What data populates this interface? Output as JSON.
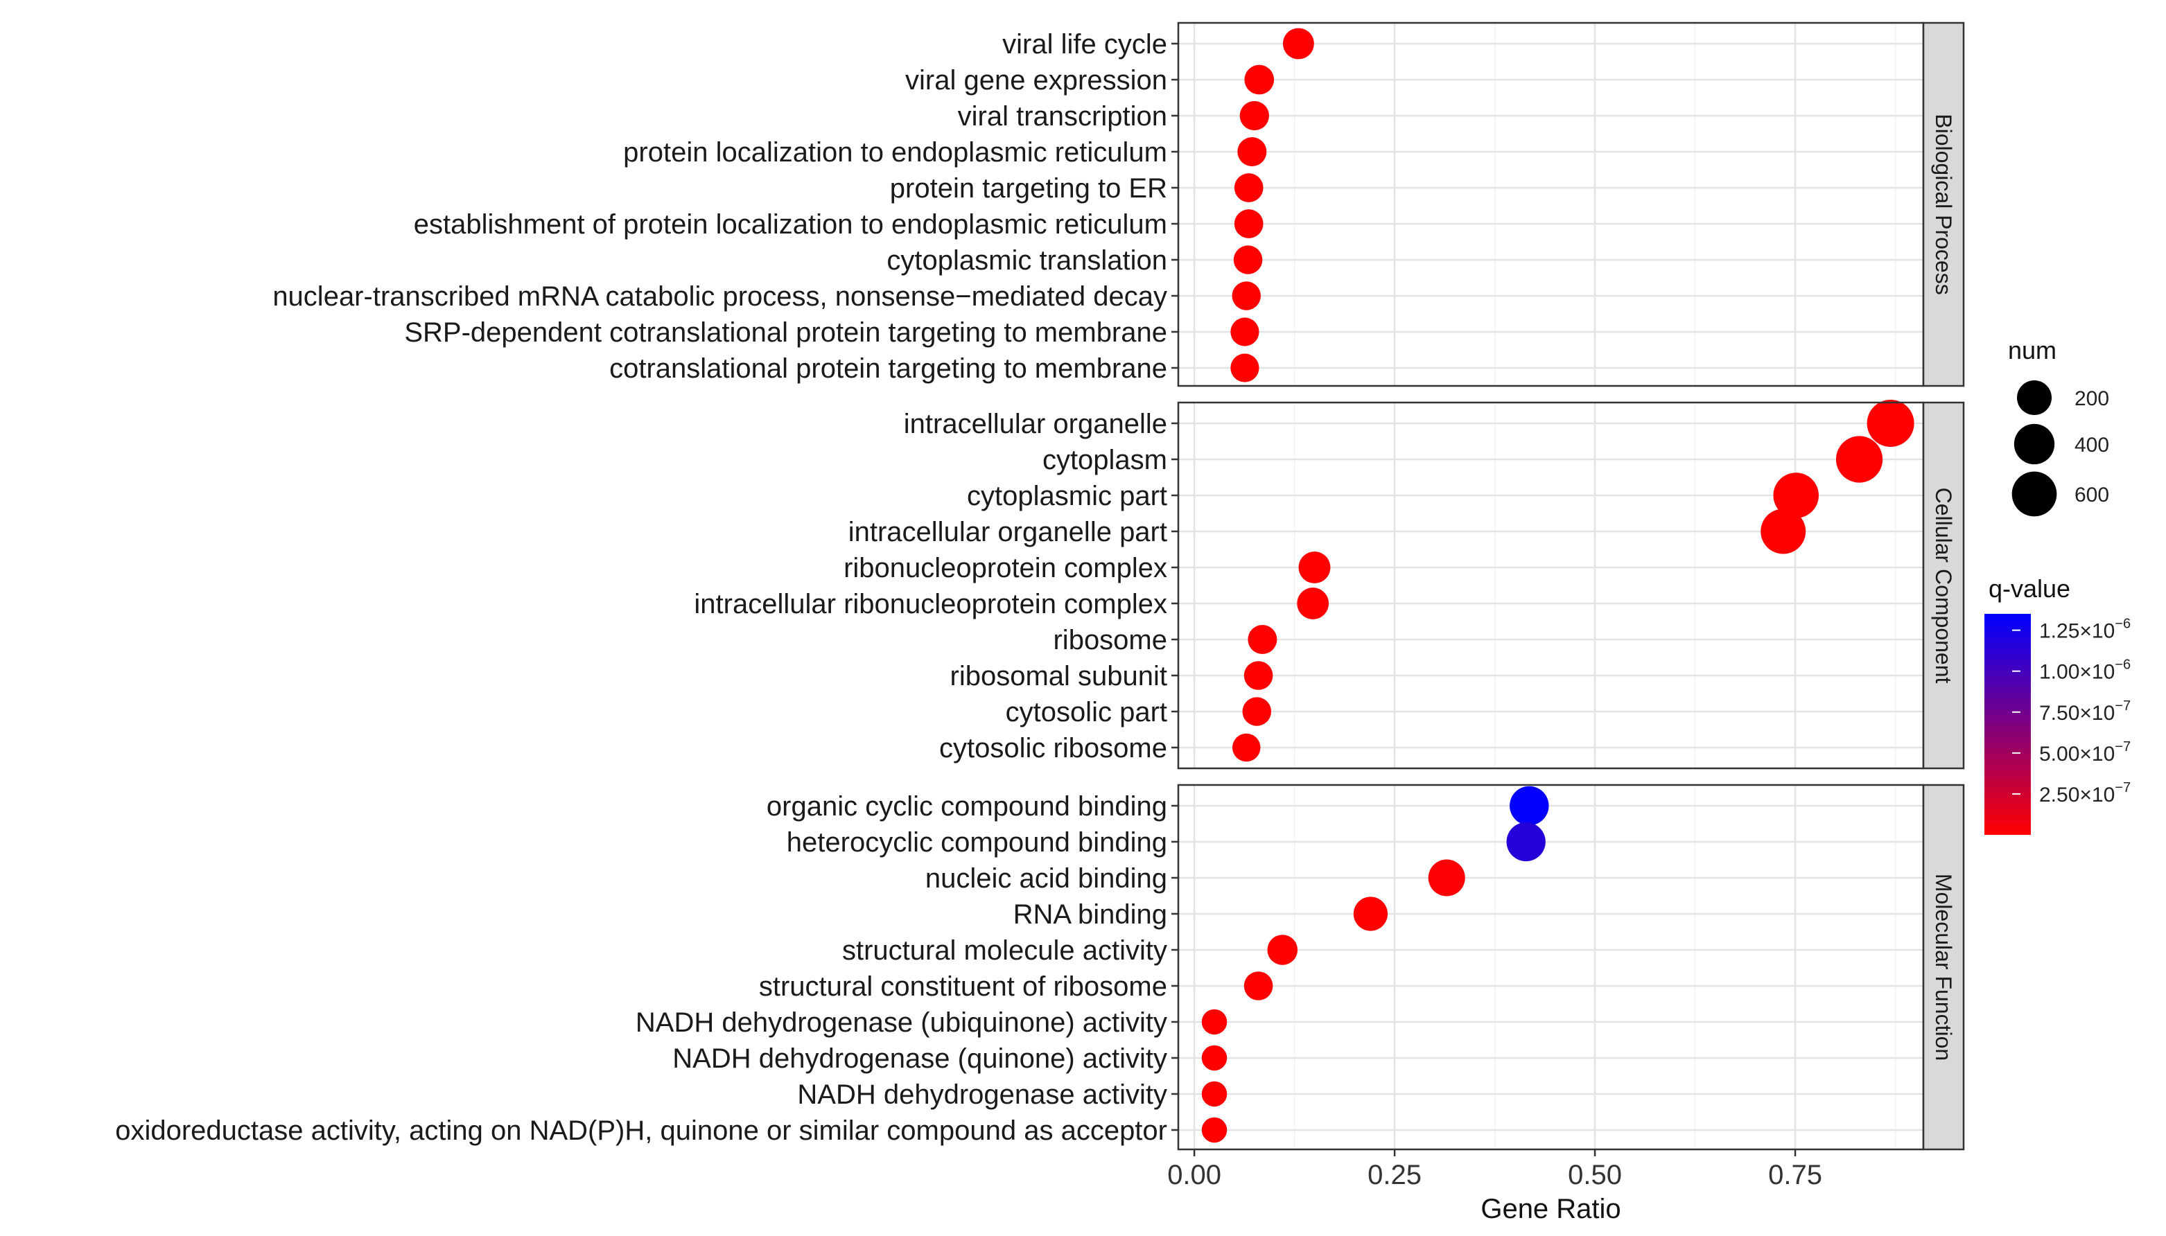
{
  "chart_data": {
    "type": "scatter",
    "title": "",
    "xlabel": "Gene Ratio",
    "ylabel": "",
    "xlim": [
      -0.02,
      0.91
    ],
    "x_ticks": [
      0,
      0.25,
      0.5,
      0.75
    ],
    "x_tick_labels": [
      "0.00",
      "0.25",
      "0.50",
      "0.75"
    ],
    "grid": true,
    "legend_position": "right",
    "size_legend": {
      "title": "num",
      "values": [
        200,
        400,
        600
      ],
      "labels": [
        "200",
        "400",
        "600"
      ]
    },
    "color_legend": {
      "title": "q-value",
      "low_color": "#ff0000",
      "high_color": "#0000ff",
      "max": 1.35e-06,
      "breaks": [
        2.5e-07,
        5e-07,
        7.5e-07,
        1e-06,
        1.25e-06
      ],
      "labels_mantissa": [
        "2.50×10",
        "5.00×10",
        "7.50×10",
        "1.00×10",
        "1.25×10"
      ],
      "labels_exponent": [
        "−7",
        "−7",
        "−7",
        "−6",
        "−6"
      ]
    },
    "facets": [
      {
        "name": "Biological Process",
        "points": [
          {
            "term": "viral life cycle",
            "gene_ratio": 0.13,
            "num": 110,
            "q_value": 1e-10
          },
          {
            "term": "viral gene expression",
            "gene_ratio": 0.081,
            "num": 80,
            "q_value": 1e-10
          },
          {
            "term": "viral transcription",
            "gene_ratio": 0.075,
            "num": 75,
            "q_value": 1e-10
          },
          {
            "term": "protein localization to endoplasmic reticulum",
            "gene_ratio": 0.072,
            "num": 72,
            "q_value": 1e-10
          },
          {
            "term": "protein targeting to ER",
            "gene_ratio": 0.068,
            "num": 68,
            "q_value": 1e-10
          },
          {
            "term": "establishment of protein localization to endoplasmic reticulum",
            "gene_ratio": 0.068,
            "num": 68,
            "q_value": 1e-10
          },
          {
            "term": "cytoplasmic translation",
            "gene_ratio": 0.067,
            "num": 66,
            "q_value": 1e-10
          },
          {
            "term": "nuclear-transcribed mRNA catabolic process, nonsense−mediated decay",
            "gene_ratio": 0.065,
            "num": 65,
            "q_value": 1e-10
          },
          {
            "term": "SRP-dependent cotranslational protein targeting to membrane",
            "gene_ratio": 0.063,
            "num": 62,
            "q_value": 1e-10
          },
          {
            "term": "cotranslational protein targeting to membrane",
            "gene_ratio": 0.063,
            "num": 62,
            "q_value": 1e-10
          }
        ]
      },
      {
        "name": "Cellular Component",
        "points": [
          {
            "term": "intracellular organelle",
            "gene_ratio": 0.869,
            "num": 720,
            "q_value": 5e-09
          },
          {
            "term": "cytoplasm",
            "gene_ratio": 0.83,
            "num": 690,
            "q_value": 5e-09
          },
          {
            "term": "cytoplasmic part",
            "gene_ratio": 0.751,
            "num": 630,
            "q_value": 5e-09
          },
          {
            "term": "intracellular organelle part",
            "gene_ratio": 0.735,
            "num": 610,
            "q_value": 5e-09
          },
          {
            "term": "ribonucleoprotein complex",
            "gene_ratio": 0.15,
            "num": 125,
            "q_value": 1e-10
          },
          {
            "term": "intracellular ribonucleoprotein complex",
            "gene_ratio": 0.148,
            "num": 123,
            "q_value": 1e-10
          },
          {
            "term": "ribosome",
            "gene_ratio": 0.085,
            "num": 72,
            "q_value": 1e-10
          },
          {
            "term": "ribosomal subunit",
            "gene_ratio": 0.08,
            "num": 67,
            "q_value": 1e-10
          },
          {
            "term": "cytosolic part",
            "gene_ratio": 0.078,
            "num": 66,
            "q_value": 1e-10
          },
          {
            "term": "cytosolic ribosome",
            "gene_ratio": 0.065,
            "num": 55,
            "q_value": 1e-10
          }
        ]
      },
      {
        "name": "Molecular Function",
        "points": [
          {
            "term": "organic cyclic compound binding",
            "gene_ratio": 0.418,
            "num": 350,
            "q_value": 1.33e-06
          },
          {
            "term": "heterocyclic compound binding",
            "gene_ratio": 0.414,
            "num": 345,
            "q_value": 1.15e-06
          },
          {
            "term": "nucleic acid binding",
            "gene_ratio": 0.315,
            "num": 265,
            "q_value": 2e-08
          },
          {
            "term": "RNA binding",
            "gene_ratio": 0.22,
            "num": 185,
            "q_value": 1e-09
          },
          {
            "term": "structural molecule activity",
            "gene_ratio": 0.11,
            "num": 92,
            "q_value": 1e-10
          },
          {
            "term": "structural constituent of ribosome",
            "gene_ratio": 0.08,
            "num": 67,
            "q_value": 1e-10
          },
          {
            "term": "NADH dehydrogenase (ubiquinone) activity",
            "gene_ratio": 0.025,
            "num": 21,
            "q_value": 3e-09
          },
          {
            "term": "NADH dehydrogenase (quinone) activity",
            "gene_ratio": 0.025,
            "num": 21,
            "q_value": 3e-09
          },
          {
            "term": "NADH dehydrogenase activity",
            "gene_ratio": 0.025,
            "num": 21,
            "q_value": 3e-09
          },
          {
            "term": "oxidoreductase activity, acting on NAD(P)H, quinone or similar compound as acceptor",
            "gene_ratio": 0.025,
            "num": 21,
            "q_value": 3e-09
          }
        ]
      }
    ]
  }
}
